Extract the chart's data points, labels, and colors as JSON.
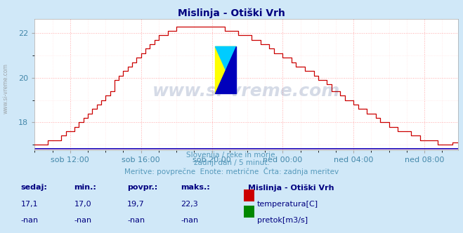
{
  "title": "Mislinja - Otiški Vrh",
  "title_color": "#000080",
  "bg_color": "#d0e8f8",
  "plot_bg_color": "#ffffff",
  "line_color": "#cc0000",
  "line_color2": "#008800",
  "grid_color_major": "#ffaaaa",
  "grid_color_minor": "#ffe0e0",
  "tick_color": "#4488aa",
  "ylim": [
    16.75,
    22.65
  ],
  "yticks": [
    18,
    20,
    22
  ],
  "xtick_labels": [
    "sob 12:00",
    "sob 16:00",
    "sob 20:00",
    "ned 00:00",
    "ned 04:00",
    "ned 08:00"
  ],
  "n_points": 288,
  "subtitle1": "Slovenija / reke in morje.",
  "subtitle2": "zadnji dan / 5 minut.",
  "subtitle3": "Meritve: povprečne  Enote: metrične  Črta: zadnja meritev",
  "subtitle_color": "#5599bb",
  "legend_title": "Mislinja - Otiški Vrh",
  "legend_title_color": "#000080",
  "legend_color": "#000080",
  "stats_label_color": "#000080",
  "stats_value_color": "#000080",
  "watermark_text": "www.si-vreme.com",
  "watermark_color": "#1a3a7a",
  "watermark_alpha": 0.18,
  "sidebar_text": "www.si-vreme.com",
  "sidebar_color": "#888888"
}
